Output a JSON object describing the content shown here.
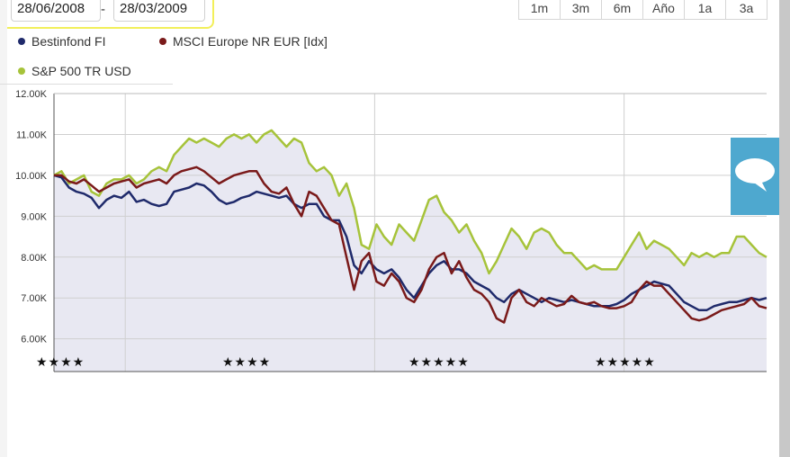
{
  "date_range": {
    "from": "28/06/2008",
    "separator": "-",
    "to": "28/03/2009"
  },
  "range_buttons": [
    "1m",
    "3m",
    "6m",
    "Año",
    "1a",
    "3a"
  ],
  "legend": [
    {
      "label": "Bestinfond FI",
      "color": "#1f2a6b"
    },
    {
      "label": "MSCI Europe NR EUR [Idx]",
      "color": "#7a1a1a"
    },
    {
      "label": "S&P 500 TR USD",
      "color": "#a6c33a"
    }
  ],
  "chat_button": {
    "icon": "speech-bubble-icon"
  },
  "chart_data": {
    "type": "line",
    "ylim": [
      5.2,
      12.0
    ],
    "y_ticks": [
      "12.00K",
      "11.00K",
      "10.00K",
      "9.00K",
      "8.00K",
      "7.00K",
      "6.00K"
    ],
    "y_tick_values": [
      12,
      11,
      10,
      9,
      8,
      7,
      6
    ],
    "x_index_range": [
      0,
      100
    ],
    "gridlines_x_index": [
      10,
      45,
      80
    ],
    "grid": true,
    "star_groups": [
      {
        "stars": "★★★★",
        "center_index": 3
      },
      {
        "stars": "★★★★",
        "center_index": 38
      },
      {
        "stars": "★★★★★",
        "center_index": 73
      },
      {
        "stars": "★★★★★",
        "center_index": 108
      }
    ],
    "series": [
      {
        "name": "S&P 500 TR USD",
        "color": "#a6c33a",
        "values": [
          10.0,
          10.1,
          9.8,
          9.9,
          10.0,
          9.6,
          9.5,
          9.8,
          9.9,
          9.9,
          10.0,
          9.8,
          9.9,
          10.1,
          10.2,
          10.1,
          10.5,
          10.7,
          10.9,
          10.8,
          10.9,
          10.8,
          10.7,
          10.9,
          11.0,
          10.9,
          11.0,
          10.8,
          11.0,
          11.1,
          10.9,
          10.7,
          10.9,
          10.8,
          10.3,
          10.1,
          10.2,
          10.0,
          9.5,
          9.8,
          9.2,
          8.3,
          8.2,
          8.8,
          8.5,
          8.3,
          8.8,
          8.6,
          8.4,
          8.9,
          9.4,
          9.5,
          9.1,
          8.9,
          8.6,
          8.8,
          8.4,
          8.1,
          7.6,
          7.9,
          8.3,
          8.7,
          8.5,
          8.2,
          8.6,
          8.7,
          8.6,
          8.3,
          8.1,
          8.1,
          7.9,
          7.7,
          7.8,
          7.7,
          7.7,
          7.7,
          8.0,
          8.3,
          8.6,
          8.2,
          8.4,
          8.3,
          8.2,
          8.0,
          7.8,
          8.1,
          8.0,
          8.1,
          8.0,
          8.1,
          8.1,
          8.5,
          8.5,
          8.3,
          8.1,
          8.0
        ]
      },
      {
        "name": "Bestinfond FI",
        "color": "#1f2a6b",
        "values": [
          10.0,
          9.95,
          9.7,
          9.6,
          9.55,
          9.45,
          9.2,
          9.4,
          9.5,
          9.45,
          9.6,
          9.35,
          9.4,
          9.3,
          9.25,
          9.3,
          9.6,
          9.65,
          9.7,
          9.8,
          9.75,
          9.6,
          9.4,
          9.3,
          9.35,
          9.45,
          9.5,
          9.6,
          9.55,
          9.5,
          9.45,
          9.5,
          9.3,
          9.2,
          9.3,
          9.3,
          9.0,
          8.9,
          8.9,
          8.5,
          7.8,
          7.6,
          7.9,
          7.7,
          7.6,
          7.7,
          7.5,
          7.2,
          7.0,
          7.3,
          7.6,
          7.8,
          7.9,
          7.7,
          7.7,
          7.6,
          7.4,
          7.3,
          7.2,
          7.0,
          6.9,
          7.1,
          7.2,
          7.1,
          7.0,
          6.9,
          7.0,
          6.95,
          6.9,
          6.95,
          6.9,
          6.85,
          6.8,
          6.8,
          6.8,
          6.85,
          6.95,
          7.1,
          7.2,
          7.3,
          7.4,
          7.35,
          7.3,
          7.1,
          6.9,
          6.8,
          6.7,
          6.7,
          6.8,
          6.85,
          6.9,
          6.9,
          6.95,
          7.0,
          6.95,
          7.0
        ]
      },
      {
        "name": "MSCI Europe NR EUR [Idx]",
        "color": "#7a1a1a",
        "values": [
          10.0,
          10.0,
          9.85,
          9.8,
          9.9,
          9.75,
          9.6,
          9.7,
          9.8,
          9.85,
          9.9,
          9.7,
          9.8,
          9.85,
          9.9,
          9.8,
          10.0,
          10.1,
          10.15,
          10.2,
          10.1,
          9.95,
          9.8,
          9.9,
          10.0,
          10.05,
          10.1,
          10.1,
          9.8,
          9.6,
          9.55,
          9.7,
          9.3,
          9.0,
          9.6,
          9.5,
          9.2,
          8.9,
          8.8,
          8.0,
          7.2,
          7.9,
          8.1,
          7.4,
          7.3,
          7.6,
          7.4,
          7.0,
          6.9,
          7.2,
          7.7,
          8.0,
          8.1,
          7.6,
          7.9,
          7.5,
          7.2,
          7.1,
          6.9,
          6.5,
          6.4,
          7.0,
          7.2,
          6.9,
          6.8,
          7.0,
          6.9,
          6.8,
          6.85,
          7.05,
          6.9,
          6.85,
          6.9,
          6.8,
          6.75,
          6.75,
          6.8,
          6.9,
          7.2,
          7.4,
          7.3,
          7.3,
          7.1,
          6.9,
          6.7,
          6.5,
          6.45,
          6.5,
          6.6,
          6.7,
          6.75,
          6.8,
          6.85,
          7.0,
          6.8,
          6.75
        ]
      }
    ]
  }
}
